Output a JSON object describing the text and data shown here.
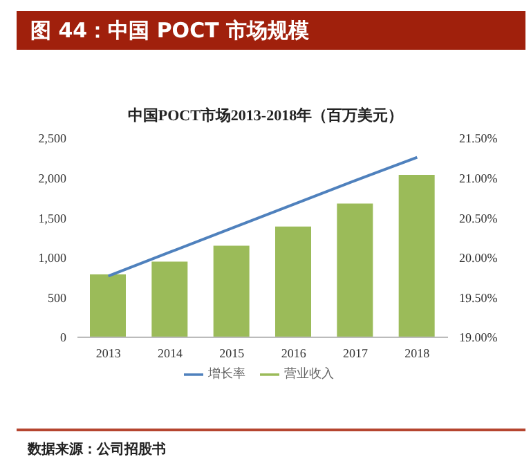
{
  "chart_data": {
    "type": "bar",
    "title": "图 44：中国 POCT 市场规模",
    "subtitle": "中国POCT市场2013-2018年（百万美元）",
    "annotations": [
      "数据来源：公司招股书"
    ],
    "categories": [
      "2013",
      "2014",
      "2015",
      "2016",
      "2017",
      "2018"
    ],
    "series": [
      {
        "name": "营业收入",
        "color": "#9bbb59",
        "values": [
          790,
          950,
          1150,
          1390,
          1680,
          2040
        ]
      },
      {
        "name": "增长率",
        "type": "line",
        "axis": "y2",
        "color": "#4f81bd",
        "marker": "none",
        "values": [
          19.77,
          20.07,
          20.37,
          20.67,
          20.97,
          21.26
        ]
      }
    ],
    "ylim": [
      0,
      2500
    ],
    "yticks": [
      {
        "value": 0,
        "label": "0"
      },
      {
        "value": 500,
        "label": "500"
      },
      {
        "value": 1000,
        "label": "1,000"
      },
      {
        "value": 1500,
        "label": "1,500"
      },
      {
        "value": 2000,
        "label": "2,000"
      },
      {
        "value": 2500,
        "label": "2,500"
      }
    ],
    "y2lim": [
      19,
      21.5
    ],
    "y2ticks": [
      {
        "value": 19,
        "label": "19.00%"
      },
      {
        "value": 19.5,
        "label": "19.50%"
      },
      {
        "value": 20,
        "label": "20.00%"
      },
      {
        "value": 20.5,
        "label": "20.50%"
      },
      {
        "value": 21,
        "label": "21.00%"
      },
      {
        "value": 21.5,
        "label": "21.50%"
      }
    ],
    "legend": "bottom"
  }
}
